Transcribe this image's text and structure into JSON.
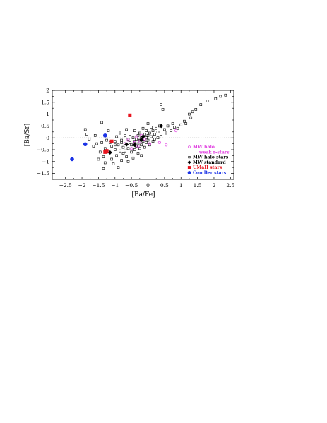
{
  "chart_data": {
    "type": "scatter",
    "xlabel": "[Ba/Fe]",
    "ylabel": "[Ba/Sr]",
    "xlim": [
      -2.9,
      2.6
    ],
    "ylim": [
      -1.75,
      2.0
    ],
    "xticks": [
      -2.5,
      -2,
      -1.5,
      -1,
      -0.5,
      0,
      0.5,
      1,
      1.5,
      2,
      2.5
    ],
    "xtick_labels": [
      "−2.5",
      "−2",
      "−1.5",
      "−1",
      "−0.5",
      "0",
      "0.5",
      "1",
      "1.5",
      "2",
      "2.5"
    ],
    "yticks": [
      -1.5,
      -1,
      -0.5,
      0,
      0.5,
      1,
      1.5,
      2
    ],
    "ytick_labels": [
      "−1.5",
      "−1",
      "−0.5",
      "0",
      "0.5",
      "1",
      "1.5",
      "2"
    ],
    "reference_lines": {
      "x": 0,
      "y": 0,
      "style": "dotted"
    },
    "legend_position": "right",
    "legend": [
      {
        "label": "MW  halo",
        "symbol": "open-circle",
        "color": "#e040e0"
      },
      {
        "label": "weak  r-stars",
        "symbol": "none",
        "color": "#e040e0"
      },
      {
        "label": "MW  halo  stars",
        "symbol": "open-square",
        "color": "#000000"
      },
      {
        "label": "MW  standard",
        "symbol": "filled-diamond",
        "color": "#000000"
      },
      {
        "label": "UMaII  stars",
        "symbol": "filled-square",
        "color": "#e8141e"
      },
      {
        "label": "ComBer  stars",
        "symbol": "filled-circle",
        "color": "#1a32e6"
      }
    ],
    "series": [
      {
        "name": "MW  halo  stars",
        "marker": "open-square",
        "color": "#000000",
        "points": [
          [
            -1.9,
            0.35
          ],
          [
            -1.85,
            0.15
          ],
          [
            -1.78,
            -0.05
          ],
          [
            -1.6,
            0.1
          ],
          [
            -1.65,
            -0.35
          ],
          [
            -1.55,
            -0.25
          ],
          [
            -1.5,
            -0.9
          ],
          [
            -1.45,
            -0.6
          ],
          [
            -1.4,
            0.65
          ],
          [
            -1.4,
            -0.2
          ],
          [
            -1.35,
            -0.8
          ],
          [
            -1.35,
            -1.3
          ],
          [
            -1.3,
            -0.45
          ],
          [
            -1.3,
            -1.05
          ],
          [
            -1.25,
            -0.1
          ],
          [
            -1.2,
            -0.6
          ],
          [
            -1.2,
            0.3
          ],
          [
            -1.15,
            -0.2
          ],
          [
            -1.1,
            -0.9
          ],
          [
            -1.1,
            -0.35
          ],
          [
            -1.05,
            -1.1
          ],
          [
            -1.0,
            -0.5
          ],
          [
            -1.0,
            -0.15
          ],
          [
            -0.95,
            0.05
          ],
          [
            -0.95,
            -0.75
          ],
          [
            -0.9,
            -0.3
          ],
          [
            -0.9,
            -1.25
          ],
          [
            -0.85,
            -0.55
          ],
          [
            -0.85,
            0.2
          ],
          [
            -0.8,
            -0.1
          ],
          [
            -0.8,
            -0.95
          ],
          [
            -0.75,
            -0.4
          ],
          [
            -0.75,
            -0.65
          ],
          [
            -0.7,
            0.1
          ],
          [
            -0.7,
            -0.25
          ],
          [
            -0.65,
            -0.8
          ],
          [
            -0.65,
            0.35
          ],
          [
            -0.6,
            -0.05
          ],
          [
            -0.6,
            -0.45
          ],
          [
            -0.6,
            -1.0
          ],
          [
            -0.55,
            -0.2
          ],
          [
            -0.55,
            0.15
          ],
          [
            -0.5,
            -0.6
          ],
          [
            -0.5,
            -0.3
          ],
          [
            -0.45,
            0.0
          ],
          [
            -0.45,
            -0.85
          ],
          [
            -0.4,
            -0.15
          ],
          [
            -0.4,
            0.3
          ],
          [
            -0.4,
            -0.5
          ],
          [
            -0.35,
            -0.05
          ],
          [
            -0.35,
            -0.35
          ],
          [
            -0.3,
            0.1
          ],
          [
            -0.3,
            -0.65
          ],
          [
            -0.3,
            -0.25
          ],
          [
            -0.25,
            -0.1
          ],
          [
            -0.25,
            0.2
          ],
          [
            -0.25,
            -0.45
          ],
          [
            -0.2,
            0.0
          ],
          [
            -0.2,
            -0.3
          ],
          [
            -0.2,
            -0.75
          ],
          [
            -0.15,
            0.05
          ],
          [
            -0.15,
            -0.15
          ],
          [
            -0.15,
            0.4
          ],
          [
            -0.1,
            -0.05
          ],
          [
            -0.1,
            -0.4
          ],
          [
            -0.1,
            0.15
          ],
          [
            -0.05,
            0.0
          ],
          [
            -0.05,
            -0.2
          ],
          [
            -0.05,
            0.3
          ],
          [
            0.0,
            -0.1
          ],
          [
            0.0,
            0.1
          ],
          [
            0.0,
            0.6
          ],
          [
            0.05,
            -0.3
          ],
          [
            0.05,
            0.2
          ],
          [
            0.1,
            0.05
          ],
          [
            0.1,
            0.45
          ],
          [
            0.15,
            -0.15
          ],
          [
            0.15,
            0.3
          ],
          [
            0.2,
            0.15
          ],
          [
            0.2,
            -0.05
          ],
          [
            0.25,
            0.4
          ],
          [
            0.3,
            0.0
          ],
          [
            0.3,
            0.25
          ],
          [
            0.35,
            0.5
          ],
          [
            0.4,
            0.15
          ],
          [
            0.4,
            1.4
          ],
          [
            0.45,
            1.2
          ],
          [
            0.5,
            0.35
          ],
          [
            0.55,
            0.2
          ],
          [
            0.6,
            0.5
          ],
          [
            0.7,
            0.3
          ],
          [
            0.75,
            0.6
          ],
          [
            0.8,
            0.45
          ],
          [
            0.9,
            0.4
          ],
          [
            1.0,
            0.55
          ],
          [
            1.1,
            0.7
          ],
          [
            1.15,
            0.6
          ],
          [
            1.25,
            1.0
          ],
          [
            1.3,
            0.85
          ],
          [
            1.35,
            1.1
          ],
          [
            1.45,
            1.2
          ],
          [
            1.6,
            1.4
          ],
          [
            1.8,
            1.55
          ],
          [
            2.05,
            1.65
          ],
          [
            2.2,
            1.75
          ],
          [
            2.35,
            1.8
          ],
          [
            -1.25,
            -0.55
          ],
          [
            -1.0,
            -0.3
          ],
          [
            -0.8,
            -0.2
          ],
          [
            -0.7,
            -0.55
          ]
        ]
      },
      {
        "name": "MW  halo  weak  r-stars",
        "marker": "open-circle",
        "color": "#e040e0",
        "points": [
          [
            -0.7,
            -0.25
          ],
          [
            -0.6,
            -0.1
          ],
          [
            -0.5,
            -0.45
          ],
          [
            -0.4,
            -0.2
          ],
          [
            -0.35,
            0.05
          ],
          [
            -0.3,
            -0.35
          ],
          [
            -0.25,
            -0.15
          ],
          [
            -0.2,
            0.1
          ],
          [
            -0.1,
            -0.05
          ],
          [
            0.05,
            -0.25
          ],
          [
            0.35,
            -0.2
          ],
          [
            0.55,
            -0.3
          ],
          [
            0.85,
            0.3
          ]
        ]
      },
      {
        "name": "MW  standard",
        "marker": "filled-diamond",
        "color": "#000000",
        "points": [
          [
            -1.15,
            -0.62
          ],
          [
            -0.65,
            -0.28
          ],
          [
            -0.4,
            -0.3
          ],
          [
            -0.2,
            -0.08
          ],
          [
            -0.15,
            0.05
          ],
          [
            0.4,
            0.5
          ]
        ]
      },
      {
        "name": "UMaII  stars",
        "marker": "filled-square",
        "color": "#e8141e",
        "points": [
          [
            -0.55,
            0.95
          ],
          [
            -1.1,
            -0.15
          ],
          [
            -1.3,
            -0.6
          ],
          [
            -1.25,
            -0.55
          ]
        ]
      },
      {
        "name": "ComBer  stars",
        "marker": "filled-circle",
        "color": "#1a32e6",
        "points": [
          [
            -2.3,
            -0.9
          ],
          [
            -1.9,
            -0.27
          ],
          [
            -1.3,
            0.1
          ]
        ]
      }
    ]
  }
}
